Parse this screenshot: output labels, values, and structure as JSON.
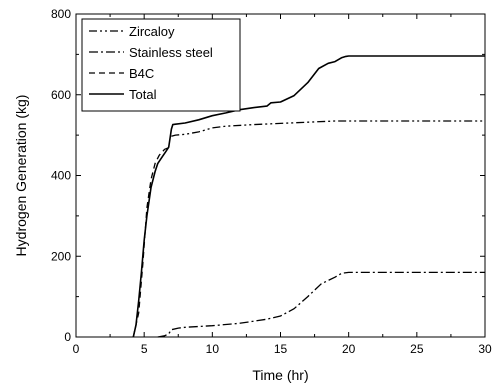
{
  "chart_data": {
    "type": "line",
    "title": "",
    "xlabel": "Time (hr)",
    "ylabel": "Hydrogen Generation (kg)",
    "xlim": [
      0,
      30
    ],
    "ylim": [
      0,
      800
    ],
    "xticks": [
      0,
      5,
      10,
      15,
      20,
      25,
      30
    ],
    "yticks": [
      0,
      200,
      400,
      600,
      800
    ],
    "grid": false,
    "legend_position": "top-left",
    "series": [
      {
        "name": "Zircaloy",
        "dash": "dash-dot-dot",
        "x": [
          7.0,
          7.3,
          8.0,
          9.0,
          10.0,
          11.0,
          13.0,
          15.0,
          17.0,
          19.0,
          20.0,
          25.0,
          30.0
        ],
        "y": [
          497,
          500,
          502,
          508,
          518,
          522,
          526,
          529,
          532,
          535,
          535,
          535,
          535
        ]
      },
      {
        "name": "Stainless steel",
        "dash": "dash-dot",
        "x": [
          6.0,
          6.5,
          6.8,
          7.0,
          7.5,
          8.0,
          9.0,
          10.0,
          12.0,
          14.0,
          15.0,
          16.0,
          17.0,
          18.0,
          19.0,
          19.5,
          20.0,
          25.0,
          30.0
        ],
        "y": [
          0,
          3,
          8,
          18,
          22,
          24,
          26,
          28,
          34,
          44,
          52,
          70,
          100,
          132,
          148,
          158,
          160,
          160,
          160
        ]
      },
      {
        "name": "B4C",
        "dash": "dashed",
        "x": [
          4.2,
          4.6,
          4.9,
          5.2,
          5.5,
          5.8,
          6.1,
          6.5,
          6.9,
          7.0
        ],
        "y": [
          0,
          60,
          180,
          320,
          390,
          430,
          450,
          465,
          470,
          472
        ]
      },
      {
        "name": "Total",
        "dash": "solid",
        "x": [
          4.2,
          4.4,
          4.6,
          4.8,
          5.0,
          5.2,
          5.5,
          5.8,
          6.0,
          6.3,
          6.6,
          6.8,
          7.0,
          7.1,
          7.3,
          8.0,
          9.0,
          10.0,
          11.0,
          12.0,
          13.0,
          14.0,
          14.3,
          15.0,
          16.0,
          17.0,
          17.8,
          18.5,
          19.0,
          19.5,
          19.8,
          20.0,
          22.0,
          25.0,
          30.0
        ],
        "y": [
          0,
          30,
          90,
          160,
          240,
          300,
          370,
          410,
          430,
          445,
          460,
          470,
          515,
          526,
          527,
          530,
          538,
          548,
          555,
          563,
          568,
          572,
          580,
          582,
          598,
          630,
          665,
          678,
          682,
          692,
          695,
          696,
          696,
          696,
          696
        ]
      }
    ]
  }
}
